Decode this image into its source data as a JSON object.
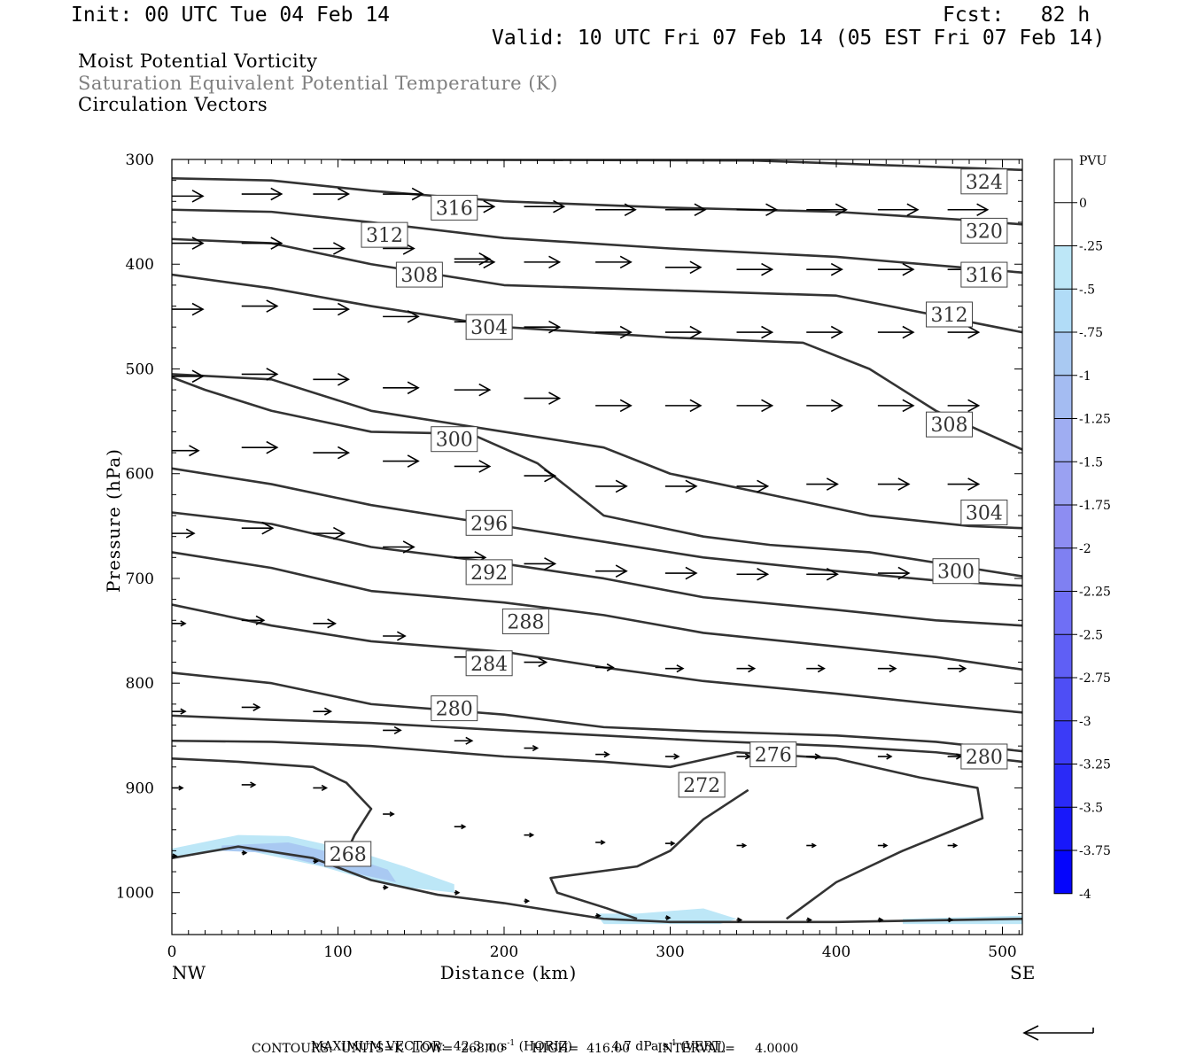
{
  "header": {
    "init": "Init: 00 UTC Tue 04 Feb 14",
    "fcst": "Fcst:   82 h",
    "valid": "Valid: 10 UTC Fri 07 Feb 14 (05 EST Fri 07 Feb 14)"
  },
  "titles": {
    "line1": "Moist Potential Vorticity",
    "line2": "Saturation Equivalent Potential Temperature (K)",
    "line3": "Circulation Vectors",
    "line2_color": "#7f7f7f"
  },
  "footer": {
    "max_vector_label": "MAXIMUM VECTOR:",
    "horiz_value": "42.3 m s",
    "horiz_unit": "(HORIZ)",
    "vert_value": "4.7 dPa s",
    "vert_unit": "(VERT)",
    "exponent": "-1",
    "contours": "CONTOURS:  UNITS=K  LOW=  268.00       HIGH=  416.00       INTERVAL=     4.0000"
  },
  "chart_data": {
    "type": "cross-section",
    "title": "",
    "xlabel": "Distance (km)",
    "ylabel": "Pressure (hPa)",
    "xlim": [
      0,
      512
    ],
    "ylim": [
      300,
      1040
    ],
    "y_inverted": true,
    "xticks": [
      0,
      100,
      200,
      300,
      400,
      500
    ],
    "yticks": [
      300,
      400,
      500,
      600,
      700,
      800,
      900,
      1000
    ],
    "x_endpoints": {
      "left": "NW",
      "right": "SE"
    },
    "line_color": "#333333",
    "contour_labels": [
      {
        "v": "324",
        "x": 489,
        "p": 321
      },
      {
        "v": "320",
        "x": 489,
        "p": 368
      },
      {
        "v": "316",
        "x": 489,
        "p": 410
      },
      {
        "v": "316",
        "x": 170,
        "p": 346
      },
      {
        "v": "312",
        "x": 128,
        "p": 372
      },
      {
        "v": "312",
        "x": 468,
        "p": 448
      },
      {
        "v": "308",
        "x": 149,
        "p": 410
      },
      {
        "v": "308",
        "x": 468,
        "p": 553
      },
      {
        "v": "304",
        "x": 191,
        "p": 460
      },
      {
        "v": "304",
        "x": 489,
        "p": 637
      },
      {
        "v": "300",
        "x": 170,
        "p": 567
      },
      {
        "v": "300",
        "x": 472,
        "p": 693
      },
      {
        "v": "296",
        "x": 191,
        "p": 647
      },
      {
        "v": "292",
        "x": 191,
        "p": 694
      },
      {
        "v": "288",
        "x": 213,
        "p": 741
      },
      {
        "v": "284",
        "x": 191,
        "p": 781
      },
      {
        "v": "280",
        "x": 170,
        "p": 824
      },
      {
        "v": "280",
        "x": 489,
        "p": 870
      },
      {
        "v": "276",
        "x": 362,
        "p": 868
      },
      {
        "v": "272",
        "x": 319,
        "p": 897
      },
      {
        "v": "268",
        "x": 106,
        "p": 963
      }
    ],
    "contours": [
      [
        [
          102,
          300
        ],
        [
          350,
          301
        ],
        [
          512,
          310
        ]
      ],
      [
        [
          0,
          318
        ],
        [
          60,
          320
        ],
        [
          120,
          330
        ],
        [
          200,
          340
        ],
        [
          300,
          346
        ],
        [
          400,
          350
        ],
        [
          480,
          358
        ],
        [
          512,
          362
        ]
      ],
      [
        [
          0,
          348
        ],
        [
          60,
          350
        ],
        [
          120,
          360
        ],
        [
          200,
          375
        ],
        [
          300,
          385
        ],
        [
          400,
          393
        ],
        [
          512,
          408
        ]
      ],
      [
        [
          0,
          376
        ],
        [
          60,
          380
        ],
        [
          120,
          400
        ],
        [
          200,
          420
        ],
        [
          300,
          425
        ],
        [
          400,
          430
        ],
        [
          512,
          465
        ]
      ],
      [
        [
          0,
          410
        ],
        [
          60,
          423
        ],
        [
          120,
          440
        ],
        [
          200,
          460
        ],
        [
          300,
          470
        ],
        [
          380,
          475
        ],
        [
          420,
          500
        ],
        [
          460,
          540
        ],
        [
          512,
          577
        ]
      ],
      [
        [
          0,
          505
        ],
        [
          60,
          510
        ],
        [
          120,
          540
        ],
        [
          200,
          560
        ],
        [
          260,
          575
        ],
        [
          300,
          600
        ],
        [
          360,
          620
        ],
        [
          420,
          640
        ],
        [
          480,
          650
        ],
        [
          512,
          652
        ]
      ],
      [
        [
          0,
          508
        ],
        [
          20,
          520
        ],
        [
          60,
          540
        ],
        [
          120,
          560
        ],
        [
          180,
          562
        ],
        [
          220,
          590
        ],
        [
          260,
          640
        ],
        [
          320,
          660
        ],
        [
          360,
          668
        ],
        [
          420,
          675
        ],
        [
          512,
          698
        ]
      ],
      [
        [
          0,
          595
        ],
        [
          60,
          610
        ],
        [
          120,
          630
        ],
        [
          200,
          650
        ],
        [
          260,
          665
        ],
        [
          320,
          680
        ],
        [
          400,
          693
        ],
        [
          460,
          702
        ],
        [
          512,
          707
        ]
      ],
      [
        [
          0,
          637
        ],
        [
          60,
          648
        ],
        [
          120,
          670
        ],
        [
          200,
          686
        ],
        [
          260,
          700
        ],
        [
          320,
          718
        ],
        [
          400,
          730
        ],
        [
          460,
          740
        ],
        [
          512,
          745
        ]
      ],
      [
        [
          0,
          675
        ],
        [
          60,
          690
        ],
        [
          120,
          712
        ],
        [
          200,
          723
        ],
        [
          260,
          735
        ],
        [
          320,
          752
        ],
        [
          400,
          765
        ],
        [
          460,
          775
        ],
        [
          512,
          787
        ]
      ],
      [
        [
          0,
          725
        ],
        [
          60,
          745
        ],
        [
          120,
          760
        ],
        [
          200,
          770
        ],
        [
          260,
          785
        ],
        [
          320,
          798
        ],
        [
          400,
          810
        ],
        [
          460,
          820
        ],
        [
          512,
          828
        ]
      ],
      [
        [
          0,
          790
        ],
        [
          60,
          800
        ],
        [
          120,
          820
        ],
        [
          200,
          830
        ],
        [
          260,
          842
        ],
        [
          320,
          846
        ],
        [
          400,
          850
        ],
        [
          460,
          856
        ],
        [
          512,
          865
        ]
      ],
      [
        [
          0,
          831
        ],
        [
          60,
          835
        ],
        [
          120,
          838
        ],
        [
          200,
          845
        ],
        [
          260,
          850
        ],
        [
          320,
          855
        ],
        [
          400,
          860
        ],
        [
          460,
          866
        ],
        [
          512,
          875
        ]
      ],
      [
        [
          0,
          855
        ],
        [
          60,
          856
        ],
        [
          120,
          860
        ],
        [
          200,
          870
        ],
        [
          260,
          875
        ],
        [
          300,
          880
        ],
        [
          340,
          866
        ],
        [
          400,
          872
        ],
        [
          450,
          890
        ],
        [
          485,
          900
        ],
        [
          488,
          929
        ],
        [
          440,
          960
        ],
        [
          400,
          990
        ],
        [
          370,
          1025
        ]
      ],
      [
        [
          0,
          872
        ],
        [
          40,
          875
        ],
        [
          85,
          880
        ],
        [
          105,
          895
        ],
        [
          120,
          920
        ],
        [
          110,
          945
        ],
        [
          105,
          962
        ]
      ],
      [
        [
          347,
          902
        ],
        [
          320,
          930
        ],
        [
          300,
          960
        ],
        [
          280,
          975
        ],
        [
          228,
          986
        ],
        [
          232,
          1000
        ],
        [
          262,
          1015
        ],
        [
          280,
          1025
        ]
      ],
      [
        [
          0,
          967
        ],
        [
          40,
          956
        ],
        [
          85,
          967
        ],
        [
          120,
          988
        ],
        [
          160,
          1002
        ],
        [
          200,
          1010
        ],
        [
          240,
          1020
        ],
        [
          260,
          1025
        ],
        [
          300,
          1028
        ],
        [
          400,
          1028
        ],
        [
          512,
          1025
        ]
      ]
    ],
    "pv_fill_areas": [
      {
        "shade": "#bde7f7",
        "pts": [
          [
            0,
            958
          ],
          [
            40,
            945
          ],
          [
            70,
            946
          ],
          [
            110,
            960
          ],
          [
            140,
            975
          ],
          [
            170,
            992
          ],
          [
            170,
            1000
          ],
          [
            130,
            993
          ],
          [
            90,
            975
          ],
          [
            40,
            958
          ],
          [
            0,
            967
          ]
        ]
      },
      {
        "shade": "#a9c9f2",
        "pts": [
          [
            30,
            955
          ],
          [
            70,
            952
          ],
          [
            105,
            965
          ],
          [
            130,
            978
          ],
          [
            135,
            990
          ],
          [
            100,
            978
          ],
          [
            60,
            962
          ],
          [
            30,
            960
          ]
        ]
      },
      {
        "shade": "#bde7f7",
        "pts": [
          [
            255,
            1020
          ],
          [
            280,
            1020
          ],
          [
            320,
            1015
          ],
          [
            340,
            1025
          ],
          [
            330,
            1030
          ],
          [
            260,
            1030
          ]
        ]
      },
      {
        "shade": "#bde7f7",
        "pts": [
          [
            440,
            1025
          ],
          [
            512,
            1022
          ],
          [
            512,
            1030
          ],
          [
            440,
            1030
          ]
        ]
      }
    ],
    "vectors": [
      [
        0,
        335,
        35
      ],
      [
        42,
        333,
        45
      ],
      [
        85,
        333,
        40
      ],
      [
        127,
        333,
        45
      ],
      [
        170,
        345,
        45
      ],
      [
        212,
        345,
        45
      ],
      [
        255,
        348,
        45
      ],
      [
        297,
        348,
        45
      ],
      [
        340,
        348,
        45
      ],
      [
        382,
        348,
        45
      ],
      [
        425,
        348,
        45
      ],
      [
        467,
        348,
        45
      ],
      [
        0,
        380,
        35
      ],
      [
        42,
        380,
        45
      ],
      [
        85,
        385,
        35
      ],
      [
        127,
        385,
        35
      ],
      [
        170,
        395,
        40
      ],
      [
        170,
        398,
        45
      ],
      [
        212,
        398,
        40
      ],
      [
        255,
        398,
        40
      ],
      [
        297,
        403,
        40
      ],
      [
        340,
        405,
        40
      ],
      [
        382,
        405,
        40
      ],
      [
        425,
        405,
        40
      ],
      [
        467,
        405,
        40
      ],
      [
        0,
        443,
        35
      ],
      [
        42,
        440,
        40
      ],
      [
        85,
        443,
        40
      ],
      [
        127,
        450,
        40
      ],
      [
        170,
        455,
        40
      ],
      [
        212,
        460,
        40
      ],
      [
        255,
        465,
        40
      ],
      [
        297,
        465,
        40
      ],
      [
        340,
        465,
        40
      ],
      [
        382,
        465,
        40
      ],
      [
        425,
        465,
        40
      ],
      [
        467,
        465,
        35
      ],
      [
        0,
        507,
        35
      ],
      [
        42,
        505,
        40
      ],
      [
        85,
        510,
        40
      ],
      [
        127,
        518,
        40
      ],
      [
        170,
        520,
        40
      ],
      [
        212,
        528,
        40
      ],
      [
        255,
        535,
        40
      ],
      [
        297,
        535,
        40
      ],
      [
        340,
        535,
        40
      ],
      [
        382,
        535,
        40
      ],
      [
        425,
        535,
        40
      ],
      [
        467,
        535,
        35
      ],
      [
        0,
        578,
        30
      ],
      [
        42,
        575,
        40
      ],
      [
        85,
        580,
        40
      ],
      [
        127,
        588,
        40
      ],
      [
        170,
        593,
        40
      ],
      [
        212,
        602,
        35
      ],
      [
        255,
        612,
        35
      ],
      [
        297,
        612,
        35
      ],
      [
        340,
        612,
        35
      ],
      [
        382,
        610,
        35
      ],
      [
        425,
        610,
        35
      ],
      [
        467,
        610,
        35
      ],
      [
        0,
        657,
        25
      ],
      [
        42,
        652,
        35
      ],
      [
        85,
        657,
        35
      ],
      [
        127,
        670,
        35
      ],
      [
        170,
        680,
        35
      ],
      [
        212,
        686,
        35
      ],
      [
        255,
        693,
        35
      ],
      [
        297,
        695,
        35
      ],
      [
        340,
        696,
        35
      ],
      [
        382,
        696,
        35
      ],
      [
        425,
        695,
        35
      ],
      [
        467,
        695,
        35
      ],
      [
        0,
        743,
        15
      ],
      [
        42,
        740,
        25
      ],
      [
        85,
        743,
        25
      ],
      [
        127,
        755,
        25
      ],
      [
        170,
        775,
        25
      ],
      [
        212,
        780,
        25
      ],
      [
        255,
        785,
        20
      ],
      [
        297,
        786,
        20
      ],
      [
        340,
        786,
        20
      ],
      [
        382,
        786,
        20
      ],
      [
        425,
        786,
        20
      ],
      [
        467,
        786,
        20
      ],
      [
        0,
        827,
        15
      ],
      [
        42,
        823,
        20
      ],
      [
        85,
        827,
        20
      ],
      [
        127,
        845,
        20
      ],
      [
        170,
        855,
        20
      ],
      [
        212,
        862,
        15
      ],
      [
        255,
        868,
        15
      ],
      [
        297,
        870,
        15
      ],
      [
        340,
        870,
        15
      ],
      [
        382,
        870,
        15
      ],
      [
        425,
        870,
        15
      ],
      [
        467,
        870,
        15
      ],
      [
        0,
        900,
        12
      ],
      [
        42,
        897,
        15
      ],
      [
        85,
        900,
        15
      ],
      [
        127,
        925,
        12
      ],
      [
        170,
        937,
        12
      ],
      [
        212,
        945,
        10
      ],
      [
        255,
        952,
        10
      ],
      [
        297,
        953,
        10
      ],
      [
        340,
        955,
        10
      ],
      [
        382,
        955,
        10
      ],
      [
        425,
        955,
        10
      ],
      [
        467,
        955,
        10
      ],
      [
        0,
        965,
        5
      ],
      [
        42,
        962,
        5
      ],
      [
        85,
        970,
        5
      ],
      [
        127,
        995,
        5
      ],
      [
        170,
        1000,
        5
      ],
      [
        212,
        1008,
        5
      ],
      [
        255,
        1022,
        5
      ],
      [
        297,
        1024,
        5
      ],
      [
        340,
        1026,
        5
      ],
      [
        382,
        1026,
        5
      ],
      [
        425,
        1026,
        5
      ],
      [
        467,
        1026,
        5
      ]
    ],
    "pvu_colorbar": {
      "title": "PVU",
      "labels": [
        "0",
        "-.25",
        "-.5",
        "-.75",
        "-1",
        "-1.25",
        "-1.5",
        "-1.75",
        "-2",
        "-2.25",
        "-2.5",
        "-2.75",
        "-3",
        "-3.25",
        "-3.5",
        "-3.75",
        "-4"
      ],
      "colors": [
        "#ffffff",
        "#ffffff",
        "#bde7f7",
        "#b1dcf7",
        "#a9c9f2",
        "#a4bcf2",
        "#9fadf2",
        "#9aa1f2",
        "#8d8df2",
        "#7f80f2",
        "#6f6ff5",
        "#5f5ff5",
        "#4e4ef5",
        "#3b3bf7",
        "#2a2af7",
        "#1818fa",
        "#0505fc"
      ]
    },
    "max_vector_arrow": "left",
    "grid": false
  }
}
